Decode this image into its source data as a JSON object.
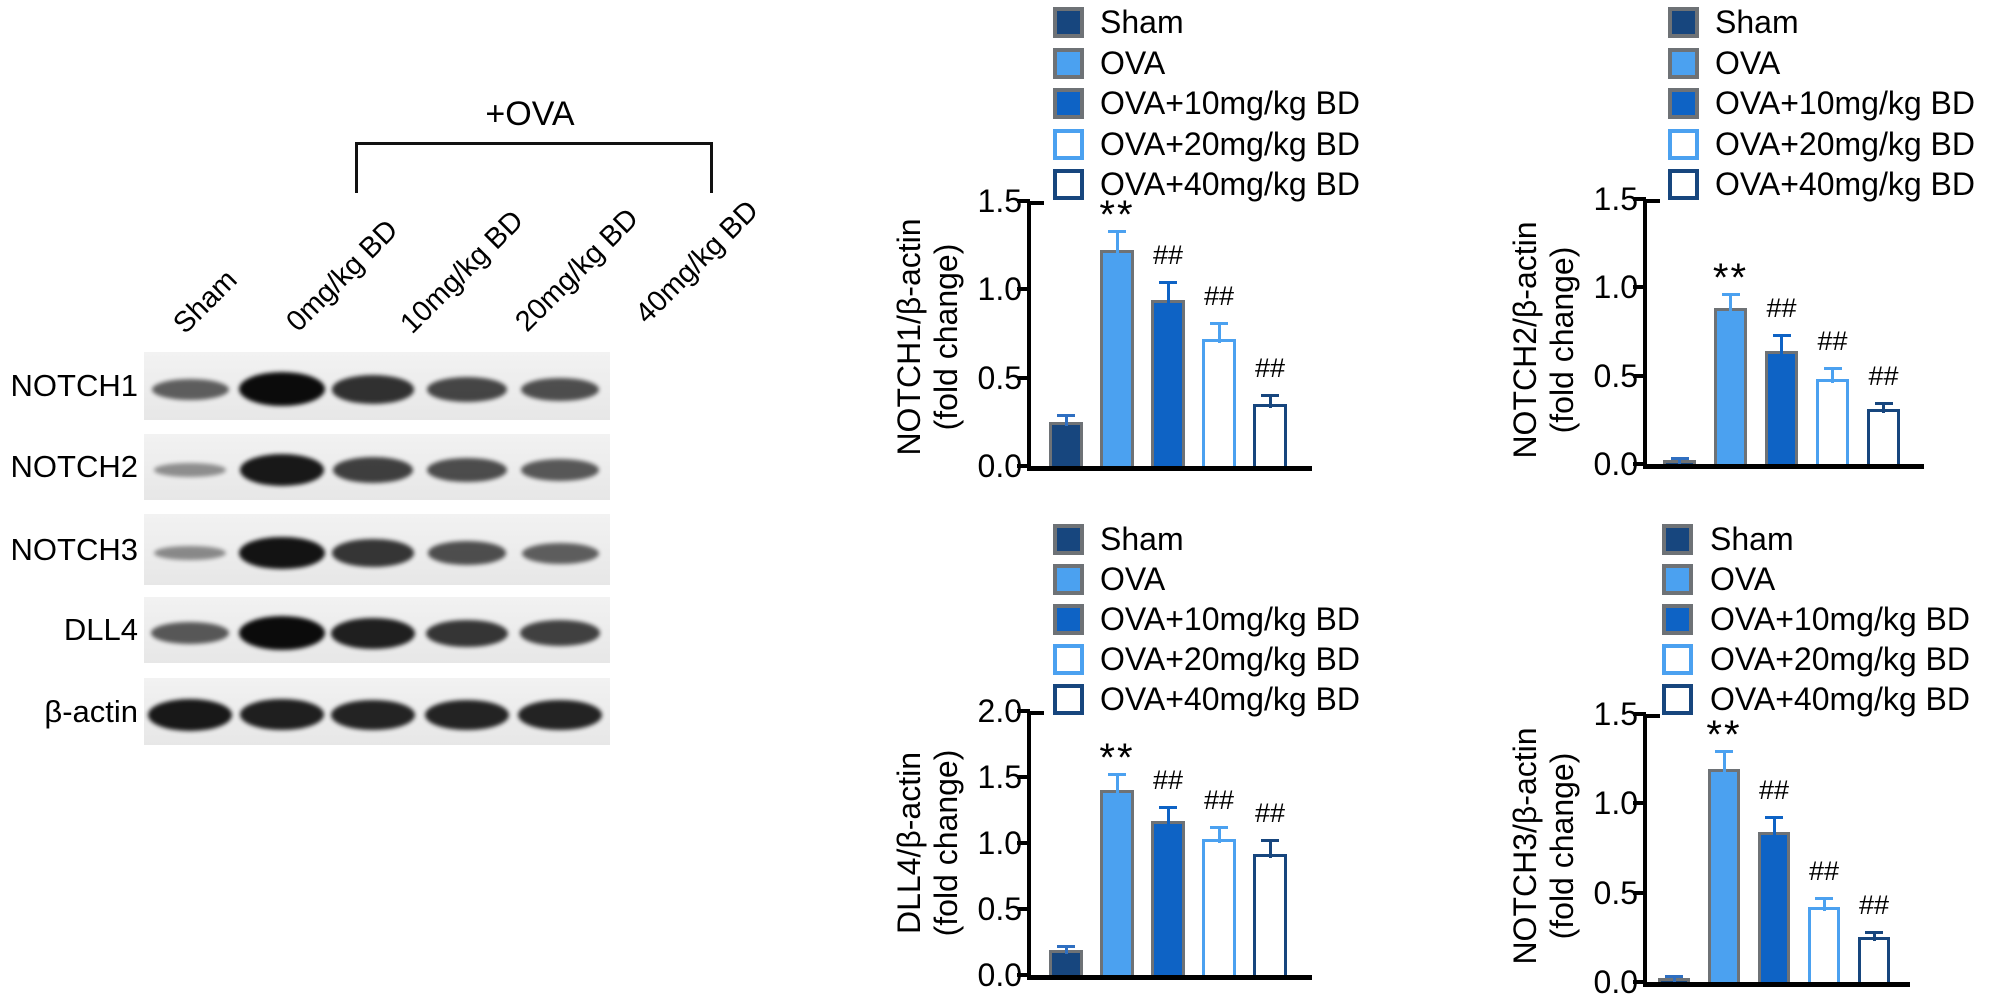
{
  "blot": {
    "bracket_label": "+OVA",
    "lane_labels": [
      "Sham",
      "0mg/kg BD",
      "10mg/kg BD",
      "20mg/kg BD",
      "40mg/kg BD"
    ],
    "row_labels": [
      "NOTCH1",
      "NOTCH2",
      "NOTCH3",
      "DLL4",
      "β-actin"
    ],
    "band_intensities": [
      [
        0.5,
        1.0,
        0.78,
        0.65,
        0.6
      ],
      [
        0.22,
        0.92,
        0.7,
        0.62,
        0.55
      ],
      [
        0.25,
        0.95,
        0.75,
        0.6,
        0.5
      ],
      [
        0.55,
        1.0,
        0.88,
        0.75,
        0.68
      ],
      [
        0.92,
        0.88,
        0.85,
        0.85,
        0.85
      ]
    ]
  },
  "legend": {
    "position": "top-right",
    "items": [
      {
        "label": "Sham",
        "fill": "#17467E",
        "border": "#6E7276",
        "error_color": "#2F6FC1"
      },
      {
        "label": "OVA",
        "fill": "#4BA1F0",
        "border": "#6E7276",
        "error_color": "#4BA1F0"
      },
      {
        "label": "OVA+10mg/kg BD",
        "fill": "#0E63C5",
        "border": "#6E7276",
        "error_color": "#0E63C5"
      },
      {
        "label": "OVA+20mg/kg BD",
        "fill": "#FFFFFF",
        "border": "#4BA1F0",
        "error_color": "#4BA1F0"
      },
      {
        "label": "OVA+40mg/kg BD",
        "fill": "#FFFFFF",
        "border": "#17467E",
        "error_color": "#17467E"
      }
    ]
  },
  "chart_data": [
    {
      "type": "bar",
      "position": "top-left",
      "ylabel": "NOTCH1/β-actin (fold change)",
      "ylabel_lines": [
        "NOTCH1/β-actin",
        "(fold change)"
      ],
      "categories": [
        "Sham",
        "OVA",
        "OVA+10mg/kg BD",
        "OVA+20mg/kg BD",
        "OVA+40mg/kg BD"
      ],
      "values": [
        0.25,
        1.22,
        0.94,
        0.72,
        0.35
      ],
      "errors": [
        0.04,
        0.11,
        0.1,
        0.09,
        0.05
      ],
      "annotations": [
        "",
        "**",
        "##",
        "##",
        "##"
      ],
      "ylim": [
        0,
        1.5
      ],
      "yticks": [
        0,
        0.5,
        1.0,
        1.5
      ],
      "grid": false,
      "legend_position": "top-right"
    },
    {
      "type": "bar",
      "position": "top-right",
      "ylabel": "NOTCH2/β-actin (fold change)",
      "ylabel_lines": [
        "NOTCH2/β-actin",
        "(fold change)"
      ],
      "categories": [
        "Sham",
        "OVA",
        "OVA+10mg/kg BD",
        "OVA+20mg/kg BD",
        "OVA+40mg/kg BD"
      ],
      "values": [
        0.02,
        0.88,
        0.64,
        0.48,
        0.31
      ],
      "errors": [
        0.015,
        0.08,
        0.09,
        0.06,
        0.035
      ],
      "annotations": [
        "",
        "**",
        "##",
        "##",
        "##"
      ],
      "ylim": [
        0,
        1.5
      ],
      "yticks": [
        0,
        0.5,
        1.0,
        1.5
      ],
      "grid": false,
      "legend_position": "top-right"
    },
    {
      "type": "bar",
      "position": "bottom-left",
      "ylabel": "DLL4/β-actin (fold change)",
      "ylabel_lines": [
        "DLL4/β-actin",
        "(fold change)"
      ],
      "categories": [
        "Sham",
        "OVA",
        "OVA+10mg/kg BD",
        "OVA+20mg/kg BD",
        "OVA+40mg/kg BD"
      ],
      "values": [
        0.19,
        1.4,
        1.17,
        1.03,
        0.92
      ],
      "errors": [
        0.03,
        0.12,
        0.1,
        0.09,
        0.1
      ],
      "annotations": [
        "",
        "**",
        "##",
        "##",
        "##"
      ],
      "ylim": [
        0,
        2.0
      ],
      "yticks": [
        0,
        0.5,
        1.0,
        1.5,
        2.0
      ],
      "grid": false,
      "legend_position": "top-right"
    },
    {
      "type": "bar",
      "position": "bottom-right",
      "ylabel": "NOTCH3/β-actin (fold change)",
      "ylabel_lines": [
        "NOTCH3/β-actin",
        "(fold change)"
      ],
      "categories": [
        "Sham",
        "OVA",
        "OVA+10mg/kg BD",
        "OVA+20mg/kg BD",
        "OVA+40mg/kg BD"
      ],
      "values": [
        0.02,
        1.19,
        0.84,
        0.42,
        0.25
      ],
      "errors": [
        0.015,
        0.1,
        0.08,
        0.05,
        0.03
      ],
      "annotations": [
        "",
        "**",
        "##",
        "##",
        "##"
      ],
      "ylim": [
        0,
        1.5
      ],
      "yticks": [
        0,
        0.5,
        1.0,
        1.5
      ],
      "grid": false,
      "legend_position": "top-right"
    }
  ]
}
